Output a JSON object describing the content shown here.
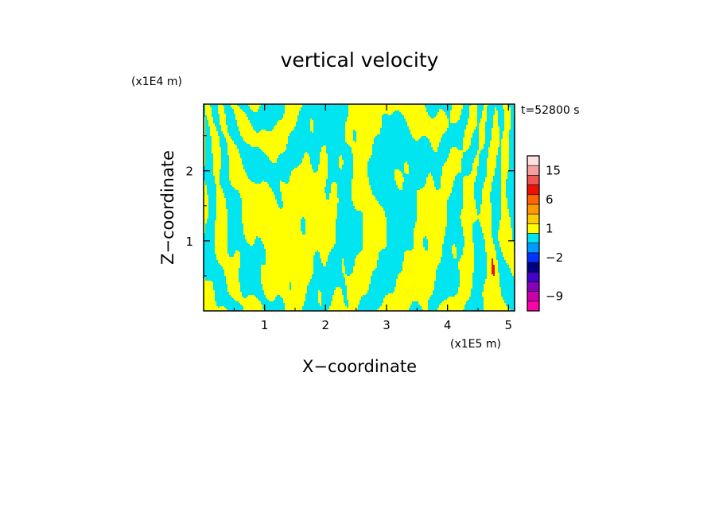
{
  "chart_data": {
    "type": "heatmap",
    "title": "vertical velocity",
    "xlabel": "X−coordinate",
    "ylabel": "Z−coordinate",
    "x_unit": "(x1E5 m)",
    "y_unit": "(x1E4 m)",
    "time_label": "t=52800 s",
    "xlim": [
      0.0,
      5.1
    ],
    "ylim": [
      0.0,
      2.95
    ],
    "x_ticks": [
      {
        "value": 1,
        "label": "1"
      },
      {
        "value": 2,
        "label": "2"
      },
      {
        "value": 3,
        "label": "3"
      },
      {
        "value": 4,
        "label": "4"
      },
      {
        "value": 5,
        "label": "5"
      }
    ],
    "y_ticks": [
      {
        "value": 1,
        "label": "1"
      },
      {
        "value": 2,
        "label": "2"
      }
    ],
    "colorbar": {
      "levels": [
        {
          "color": "#ff00aa"
        },
        {
          "color": "#cc00aa"
        },
        {
          "color": "#8800bb"
        },
        {
          "color": "#4400cc"
        },
        {
          "color": "#000080"
        },
        {
          "color": "#0033ff"
        },
        {
          "color": "#0099ff"
        },
        {
          "color": "#00e5f0"
        },
        {
          "color": "#ffff00"
        },
        {
          "color": "#ffcc00"
        },
        {
          "color": "#ff9900"
        },
        {
          "color": "#ff6600"
        },
        {
          "color": "#ee1100"
        },
        {
          "color": "#ee5555"
        },
        {
          "color": "#f4a0a0"
        },
        {
          "color": "#fde0e0"
        }
      ],
      "tick_labels": [
        {
          "label": "15",
          "level_index": 14
        },
        {
          "label": "6",
          "level_index": 11
        },
        {
          "label": "1",
          "level_index": 8
        },
        {
          "label": "−2",
          "level_index": 5
        },
        {
          "label": "−9",
          "level_index": 1
        }
      ]
    },
    "field_colors": {
      "positive": "#ffff00",
      "negative": "#00e5f0",
      "strong_positive": "#ee1100",
      "strong_negative": "#4400cc"
    }
  }
}
